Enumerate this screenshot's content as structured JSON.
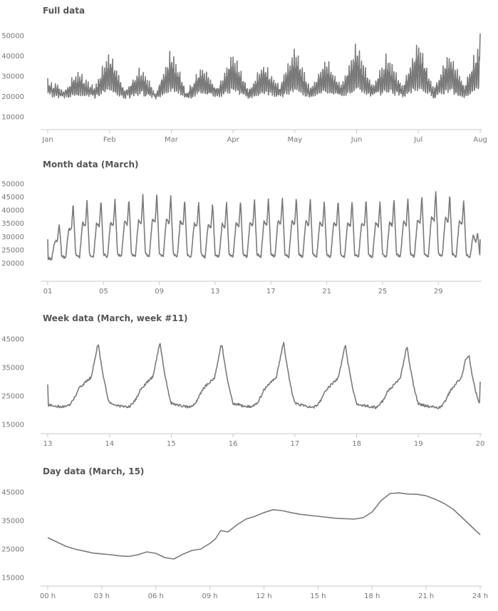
{
  "chart_data": [
    {
      "type": "line",
      "title": "Full data",
      "xlabel": "",
      "ylabel": "",
      "x_range": [
        "Jan",
        "Aug"
      ],
      "x_ticks": [
        "Jan",
        "Feb",
        "Mar",
        "Apr",
        "May",
        "Jun",
        "Jul",
        "Aug"
      ],
      "y_ticks": [
        10000,
        20000,
        30000,
        40000,
        50000
      ],
      "ylim": [
        10000,
        50000
      ],
      "grid": false,
      "series": [
        {
          "pattern": "daily",
          "x": [
            0,
            0.25,
            0.5,
            0.75,
            1,
            1.25,
            1.5,
            1.75,
            2,
            2.25,
            2.5,
            2.75,
            3,
            3.25,
            3.5,
            3.75,
            4,
            4.25,
            4.5,
            4.75,
            5,
            5.25,
            5.5,
            5.75,
            6,
            6.25,
            6.5,
            6.75,
            7
          ],
          "values": [
            29000,
            23000,
            33000,
            24000,
            44000,
            23000,
            35000,
            21000,
            45000,
            22000,
            36000,
            24000,
            43000,
            23000,
            38000,
            25000,
            46000,
            24000,
            40000,
            26000,
            48000,
            25000,
            42000,
            25000,
            50000,
            24000,
            44000,
            25000,
            51000
          ]
        }
      ]
    },
    {
      "type": "line",
      "title": "Month data (March)",
      "xlabel": "",
      "ylabel": "",
      "x_range": [
        1,
        32
      ],
      "x_ticks": [
        "01",
        "05",
        "09",
        "13",
        "17",
        "21",
        "25",
        "29"
      ],
      "y_ticks": [
        20000,
        25000,
        30000,
        35000,
        40000,
        45000,
        50000
      ],
      "ylim": [
        15000,
        50000
      ],
      "grid": false,
      "series": [
        {
          "pattern": "daily",
          "x": [
            1,
            3,
            5,
            7,
            9,
            11,
            13,
            15,
            17,
            19,
            21,
            23,
            25,
            27,
            29,
            31,
            32
          ],
          "values": [
            29000,
            44000,
            44000,
            45000,
            47000,
            44000,
            43000,
            44000,
            45000,
            45000,
            44000,
            44000,
            44000,
            45000,
            48000,
            44000,
            29000
          ]
        }
      ]
    },
    {
      "type": "line",
      "title": "Week data (March, week #11)",
      "xlabel": "",
      "ylabel": "",
      "x_range": [
        13,
        20
      ],
      "x_ticks": [
        "13",
        "14",
        "15",
        "16",
        "17",
        "18",
        "19",
        "20"
      ],
      "y_ticks": [
        15000,
        25000,
        35000,
        45000
      ],
      "ylim": [
        15000,
        45000
      ],
      "grid": false,
      "series": [
        {
          "pattern": "daily",
          "x": [
            13,
            13.3,
            13.8,
            14.3,
            14.8,
            15.3,
            15.8,
            16.3,
            16.8,
            17.3,
            17.8,
            18.3,
            18.8,
            19.3,
            19.75,
            20
          ],
          "values": [
            29000,
            23000,
            44000,
            22000,
            44500,
            22000,
            44000,
            22000,
            44500,
            22000,
            43500,
            21000,
            43000,
            19000,
            42500,
            30000
          ]
        }
      ]
    },
    {
      "type": "line",
      "title": "Day data (March, 15)",
      "xlabel": "",
      "ylabel": "",
      "x_range": [
        0,
        24
      ],
      "x_ticks": [
        "00 h",
        "03 h",
        "06 h",
        "09 h",
        "12 h",
        "15 h",
        "18 h",
        "21 h",
        "24 h"
      ],
      "y_ticks": [
        15000,
        25000,
        35000,
        45000
      ],
      "ylim": [
        15000,
        45000
      ],
      "grid": false,
      "series": [
        {
          "pattern": "smooth",
          "x": [
            0,
            0.5,
            1,
            1.5,
            2,
            2.5,
            3,
            3.5,
            4,
            4.5,
            5,
            5.5,
            6,
            6.5,
            7,
            7.5,
            8,
            8.5,
            9,
            9.3,
            9.6,
            10,
            10.5,
            11,
            11.5,
            12,
            12.5,
            13,
            13.5,
            14,
            15,
            16,
            17,
            17.5,
            18,
            18.5,
            19,
            19.5,
            20,
            20.5,
            21,
            21.5,
            22,
            22.5,
            23,
            23.5,
            24
          ],
          "values": [
            29000,
            27500,
            26000,
            25000,
            24300,
            23600,
            23300,
            23000,
            22600,
            22400,
            23000,
            24000,
            23500,
            22000,
            21500,
            23200,
            24500,
            25000,
            27000,
            28500,
            31500,
            31000,
            33500,
            35500,
            36500,
            37800,
            38800,
            38500,
            37800,
            37200,
            36500,
            35800,
            35500,
            36000,
            38000,
            42000,
            44500,
            44700,
            44300,
            44200,
            43700,
            42500,
            41000,
            39000,
            36000,
            33000,
            30000
          ]
        }
      ]
    }
  ]
}
